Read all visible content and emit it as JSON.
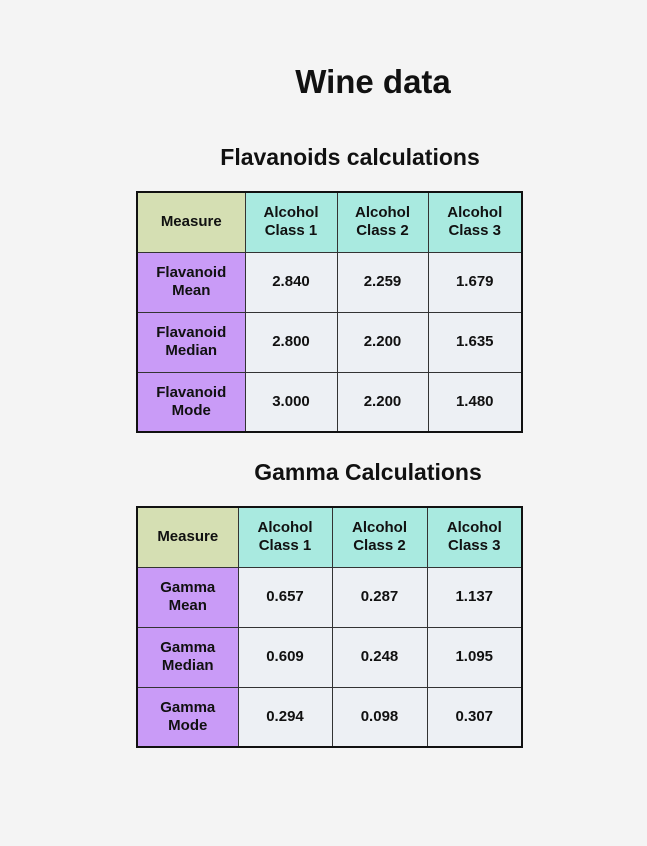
{
  "title": "Wine data",
  "flavanoids": {
    "heading": "Flavanoids calculations",
    "columns": [
      "Measure",
      "Alcohol Class 1",
      "Alcohol Class 2",
      "Alcohol Class 3"
    ],
    "rows": [
      {
        "label": "Flavanoid Mean",
        "values": [
          "2.840",
          "2.259",
          "1.679"
        ]
      },
      {
        "label": "Flavanoid Median",
        "values": [
          "2.800",
          "2.200",
          "1.635"
        ]
      },
      {
        "label": "Flavanoid Mode",
        "values": [
          "3.000",
          "2.200",
          "1.480"
        ]
      }
    ]
  },
  "gamma": {
    "heading": "Gamma Calculations",
    "columns": [
      "Measure",
      "Alcohol Class 1",
      "Alcohol Class 2",
      "Alcohol Class 3"
    ],
    "rows": [
      {
        "label": "Gamma Mean",
        "values": [
          "0.657",
          "0.287",
          "1.137"
        ]
      },
      {
        "label": "Gamma Median",
        "values": [
          "0.609",
          "0.248",
          "1.095"
        ]
      },
      {
        "label": "Gamma Mode",
        "values": [
          "0.294",
          "0.098",
          "0.307"
        ]
      }
    ]
  },
  "colors": {
    "background": "#f4f4f4",
    "measure_header": "#d5dfb3",
    "class_header": "#a9eae0",
    "row_header": "#c99bf7",
    "value_cell": "#edf0f4"
  }
}
